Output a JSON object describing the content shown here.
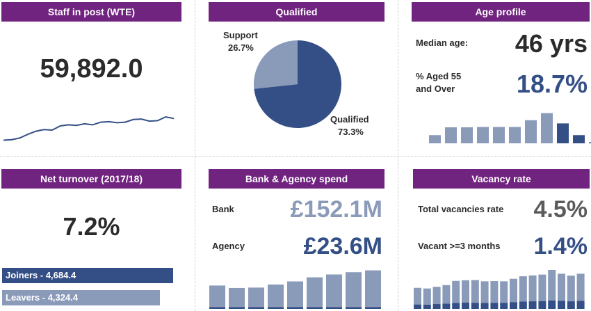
{
  "colors": {
    "header": "#70237f",
    "dark_blue": "#344f86",
    "light_blue": "#8a9ab9",
    "mid_blue": "#5b6fa0"
  },
  "staff": {
    "title": "Staff in post (WTE)",
    "value": "59,892.0"
  },
  "qualified": {
    "title": "Qualified",
    "support_label": "Support",
    "support_pct": "26.7%",
    "qualified_label": "Qualified",
    "qualified_pct": "73.3%"
  },
  "age": {
    "title": "Age profile",
    "median_label": "Median age:",
    "median_value": "46 yrs",
    "aged55_label_1": "% Aged 55",
    "aged55_label_2": "and Over",
    "aged55_value": "18.7%"
  },
  "turnover": {
    "title": "Net turnover (2017/18)",
    "value": "7.2%",
    "joiners_label": "Joiners - 4,684.4",
    "leavers_label": "Leavers - 4,324.4"
  },
  "bank": {
    "title": "Bank & Agency spend",
    "bank_label": "Bank",
    "bank_value": "£152.1M",
    "agency_label": "Agency",
    "agency_value": "£23.6M"
  },
  "vacancy": {
    "title": "Vacancy rate",
    "total_label": "Total vacancies rate",
    "total_value": "4.5%",
    "vacant3_label": "Vacant >=3 months",
    "vacant3_value": "1.4%"
  },
  "chart_data": [
    {
      "type": "line",
      "name": "staff_trend",
      "values": [
        55.2,
        55.3,
        55.6,
        56.3,
        56.9,
        57.2,
        57.1,
        57.9,
        58.1,
        58.0,
        58.3,
        58.1,
        58.6,
        58.7,
        58.5,
        58.6,
        59.1,
        59.2,
        58.8,
        58.9,
        59.6,
        59.3
      ],
      "grid": false
    },
    {
      "type": "pie",
      "name": "qualified_split",
      "categories": [
        "Qualified",
        "Support"
      ],
      "values": [
        73.3,
        26.7
      ]
    },
    {
      "type": "bar",
      "name": "age_profile",
      "values": [
        2.3,
        4.5,
        4.5,
        4.6,
        4.6,
        4.6,
        6.5,
        8.5,
        5.6,
        2.3,
        0.3
      ],
      "highlight_from_index": 8,
      "grid": false
    },
    {
      "type": "bar",
      "name": "net_turnover",
      "categories": [
        "Joiners",
        "Leavers"
      ],
      "values": [
        4684.4,
        4324.4
      ]
    },
    {
      "type": "bar",
      "name": "bank_agency_trend",
      "series": [
        {
          "values": [
            10.5,
            9.3,
            9.5,
            11.0,
            12.5,
            14.5,
            15.9,
            17.0,
            17.9
          ]
        },
        {
          "values": [
            0.9,
            0.9,
            0.9,
            0.9,
            0.9,
            0.9,
            0.9,
            0.9,
            0.9
          ]
        }
      ],
      "stacked": true,
      "grid": false
    },
    {
      "type": "bar",
      "name": "vacancy_trend",
      "series": [
        {
          "values": [
            7.9,
            7.7,
            8.2,
            8.8,
            10.5,
            10.6,
            10.8,
            10.3,
            10.3,
            10.2,
            11.1,
            12.0,
            12.3,
            12.6,
            14.5,
            12.9,
            12.2,
            12.9
          ]
        },
        {
          "values": [
            2.1,
            2.0,
            2.3,
            2.5,
            2.8,
            3.0,
            2.9,
            2.8,
            2.9,
            2.9,
            3.2,
            3.5,
            3.6,
            3.7,
            4.0,
            3.8,
            3.6,
            3.8
          ]
        }
      ],
      "stacked": true,
      "grid": false
    }
  ]
}
